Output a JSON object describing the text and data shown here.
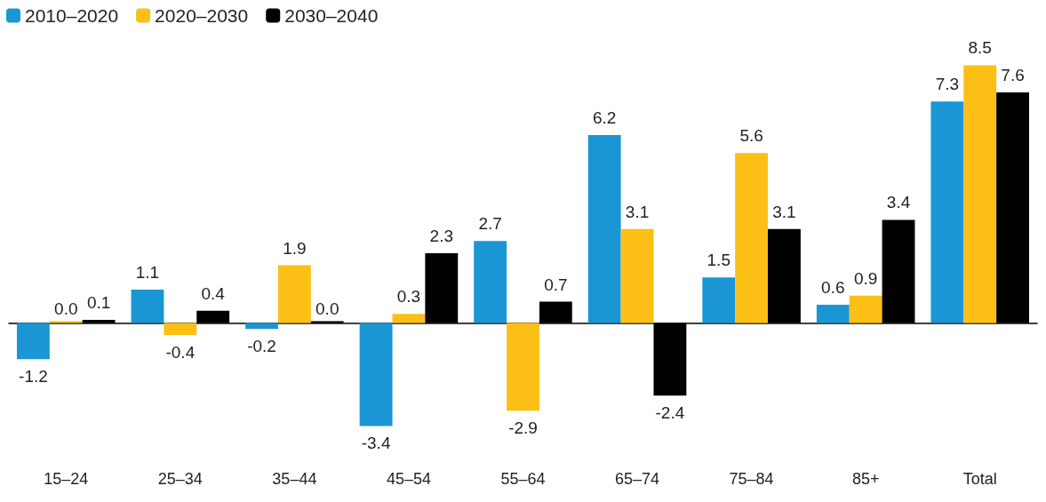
{
  "chart_data": {
    "type": "bar",
    "categories": [
      "15–24",
      "25–34",
      "35–44",
      "45–54",
      "55–64",
      "65–74",
      "75–84",
      "85+",
      "Total"
    ],
    "series": [
      {
        "name": "2010–2020",
        "color": "#1a96d4",
        "values": [
          -1.2,
          1.1,
          -0.2,
          -3.4,
          2.7,
          6.2,
          1.5,
          0.6,
          7.3
        ],
        "value_labels": [
          "-1.2",
          "1.1",
          "-0.2",
          "-3.4",
          "2.7",
          "6.2",
          "1.5",
          "0.6",
          "7.3"
        ]
      },
      {
        "name": "2020–2030",
        "color": "#fbbf16",
        "values": [
          0.0,
          -0.4,
          1.9,
          0.3,
          -2.9,
          3.1,
          5.6,
          0.9,
          8.5
        ],
        "value_labels": [
          "0.0",
          "-0.4",
          "1.9",
          "0.3",
          "-2.9",
          "3.1",
          "5.6",
          "0.9",
          "8.5"
        ]
      },
      {
        "name": "2030–2040",
        "color": "#000000",
        "values": [
          0.1,
          0.4,
          0.0,
          2.3,
          0.7,
          -2.4,
          3.1,
          3.4,
          7.6
        ],
        "value_labels": [
          "0.1",
          "0.4",
          "0.0",
          "2.3",
          "0.7",
          "-2.4",
          "3.1",
          "3.4",
          "7.6"
        ]
      }
    ],
    "legend": "top left",
    "grid": false
  }
}
